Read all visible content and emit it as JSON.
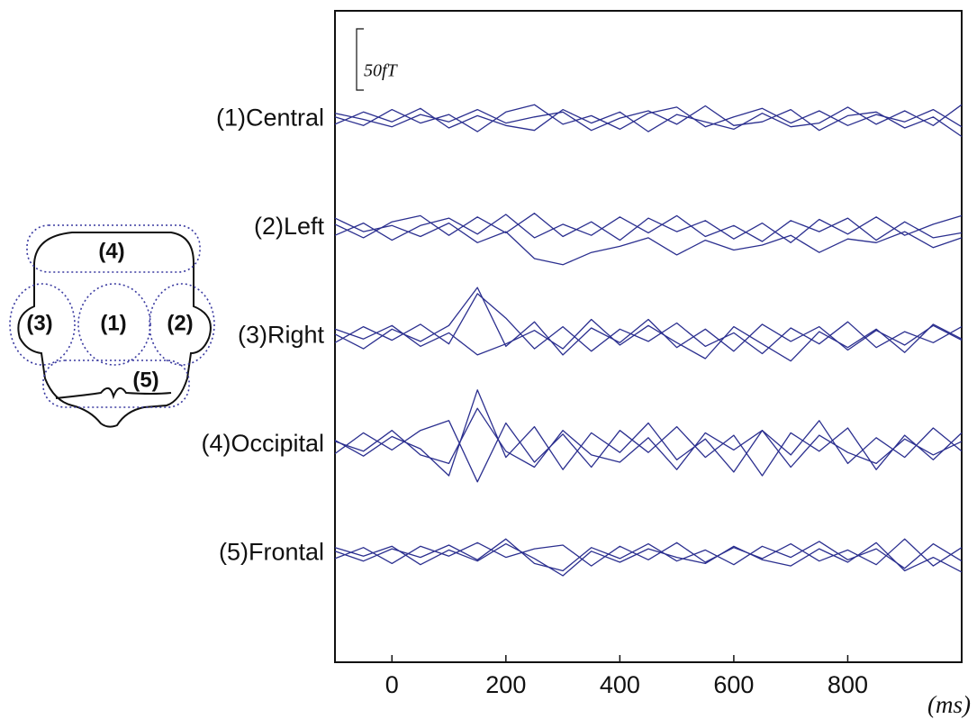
{
  "chart_data": {
    "type": "line",
    "x_label": "(ms)",
    "scale_bar": {
      "value": 50,
      "label": "50fT"
    },
    "color": "#2b2f8f",
    "xlim": [
      -100,
      1000
    ],
    "xticks": [
      0,
      200,
      400,
      600,
      800
    ],
    "x": [
      -100,
      -50,
      0,
      50,
      100,
      150,
      200,
      250,
      300,
      350,
      400,
      450,
      500,
      550,
      600,
      650,
      700,
      750,
      800,
      850,
      900,
      950,
      1000
    ],
    "groups": [
      {
        "label": "(1)Central",
        "traces": [
          [
            2,
            -5,
            8,
            -3,
            4,
            -10,
            6,
            12,
            -4,
            3,
            -8,
            5,
            10,
            -6,
            2,
            9,
            -3,
            7,
            -5,
            4,
            -2,
            8,
            -6
          ],
          [
            -4,
            6,
            -2,
            9,
            -7,
            3,
            -5,
            -9,
            8,
            -3,
            6,
            -10,
            4,
            -2,
            -8,
            5,
            -6,
            -3,
            10,
            -4,
            7,
            -5,
            12
          ],
          [
            5,
            0,
            -6,
            4,
            -2,
            8,
            -3,
            2,
            6,
            -9,
            1,
            7,
            -4,
            11,
            -5,
            -2,
            8,
            -9,
            3,
            6,
            -7,
            2,
            -14
          ]
        ]
      },
      {
        "label": "(2)Left",
        "traces": [
          [
            3,
            -8,
            5,
            10,
            -6,
            9,
            -4,
            12,
            -7,
            5,
            -10,
            8,
            -3,
            6,
            -9,
            4,
            -12,
            7,
            -5,
            9,
            -6,
            3,
            10
          ],
          [
            -6,
            4,
            -10,
            2,
            8,
            -5,
            11,
            -8,
            3,
            -6,
            9,
            -4,
            10,
            -7,
            2,
            -11,
            6,
            -3,
            8,
            -10,
            5,
            -8,
            -4
          ],
          [
            8,
            -3,
            2,
            -7,
            4,
            -12,
            -3,
            -25,
            -30,
            -20,
            -15,
            -8,
            -22,
            -10,
            -18,
            -14,
            -6,
            -20,
            -9,
            -12,
            -3,
            -16,
            -8
          ]
        ]
      },
      {
        "label": "(3)Right",
        "traces": [
          [
            2,
            -10,
            6,
            -4,
            9,
            40,
            -8,
            12,
            -15,
            7,
            -5,
            14,
            -9,
            6,
            -12,
            10,
            -4,
            8,
            -11,
            5,
            -7,
            9,
            -3
          ],
          [
            -5,
            8,
            -3,
            10,
            -6,
            35,
            15,
            -10,
            8,
            -12,
            6,
            -4,
            11,
            -8,
            3,
            -14,
            7,
            -6,
            12,
            -9,
            4,
            -5,
            8
          ],
          [
            6,
            -2,
            9,
            -8,
            3,
            -15,
            -6,
            5,
            -10,
            14,
            -7,
            9,
            -5,
            -18,
            8,
            -6,
            -20,
            4,
            -9,
            6,
            -13,
            10,
            -2
          ]
        ]
      },
      {
        "label": "(4)Occipital",
        "traces": [
          [
            4,
            -9,
            7,
            -3,
            -25,
            45,
            -10,
            15,
            -20,
            10,
            -6,
            18,
            -12,
            5,
            -22,
            12,
            -8,
            20,
            -15,
            6,
            -10,
            14,
            -5
          ],
          [
            -7,
            10,
            -4,
            12,
            20,
            -30,
            18,
            -14,
            9,
            -18,
            12,
            -6,
            15,
            -10,
            8,
            -25,
            10,
            -5,
            14,
            -20,
            8,
            -12,
            10
          ],
          [
            3,
            -5,
            12,
            -8,
            -15,
            30,
            -5,
            -18,
            12,
            -8,
            -14,
            6,
            -20,
            10,
            -4,
            12,
            -18,
            8,
            -6,
            -15,
            5,
            -8,
            3
          ]
        ]
      },
      {
        "label": "(5)Frontal",
        "traces": [
          [
            2,
            -6,
            4,
            -3,
            7,
            -5,
            12,
            -8,
            -14,
            5,
            -4,
            8,
            -6,
            3,
            -9,
            6,
            -3,
            10,
            -5,
            4,
            -12,
            8,
            -6
          ],
          [
            -4,
            5,
            -8,
            6,
            -2,
            9,
            -3,
            4,
            7,
            -10,
            6,
            -5,
            9,
            -7,
            5,
            -4,
            8,
            -6,
            3,
            -9,
            12,
            -10,
            5
          ],
          [
            5,
            -2,
            6,
            -9,
            3,
            -6,
            8,
            -4,
            -18,
            2,
            -7,
            4,
            -3,
            -8,
            6,
            -5,
            -10,
            4,
            -7,
            9,
            -14,
            -3,
            -15
          ]
        ]
      }
    ]
  },
  "head_diagram": {
    "regions": [
      "(1)",
      "(2)",
      "(3)",
      "(4)",
      "(5)"
    ]
  }
}
